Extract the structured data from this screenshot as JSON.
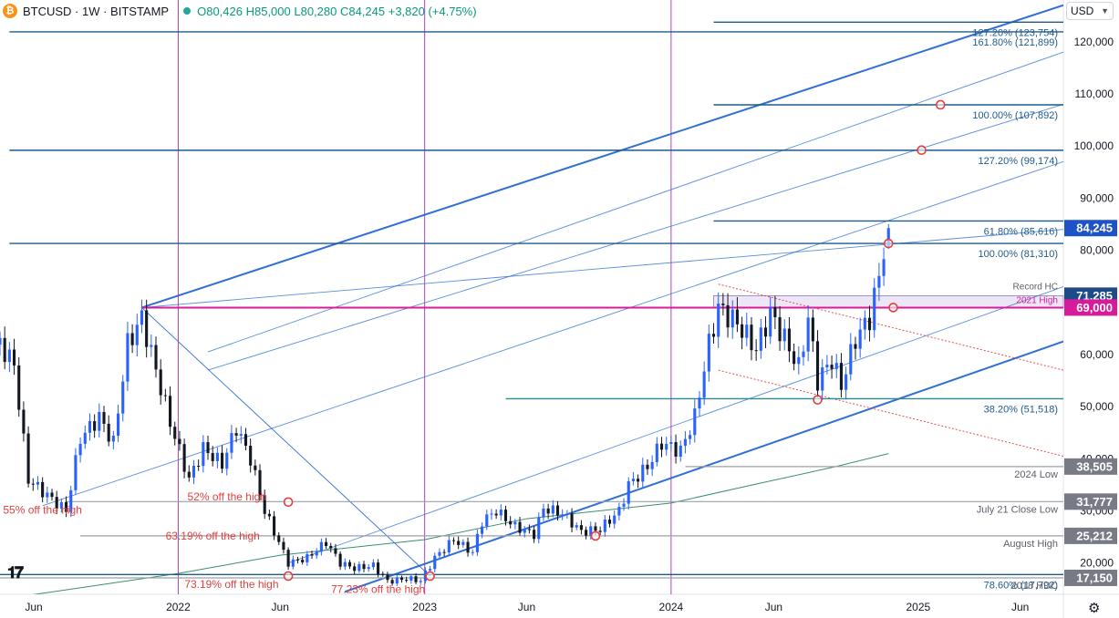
{
  "header": {
    "symbol": "BTCUSD · 1W · BITSTAMP",
    "coin_glyph": "₿",
    "ohlc": "O80,426  H85,000  L80,280  C84,245  +3,820 (+4.75%)"
  },
  "currency_button": "USD",
  "colors": {
    "up": "#2962ff",
    "down": "#131722",
    "fib_line": "#1e5a8c",
    "channel": "#2f6fd6",
    "magenta": "#d81b9a",
    "annotation_red": "#e04040",
    "price_tag": "#1e4a8a",
    "ma_green": "#3a8f6b",
    "teal": "#2a8a8a",
    "gray_level": "#9aa0a6"
  },
  "chart_data": {
    "type": "candlestick",
    "symbol": "BTCUSD",
    "timeframe": "1W",
    "exchange": "BITSTAMP",
    "ylim": [
      14000,
      128000
    ],
    "y_scale": "linear",
    "y_ticks": [
      20000,
      30000,
      40000,
      50000,
      60000,
      70000,
      80000,
      90000,
      100000,
      110000,
      120000
    ],
    "y_tick_labels": [
      "20,000",
      "30,000",
      "40,000",
      "50,000",
      "60,000",
      "70,000",
      "80,000",
      "90,000",
      "100,000",
      "110,000",
      "120,000"
    ],
    "x_range": [
      "2021-04-12",
      "2025-08-04"
    ],
    "x_ticks": [
      {
        "date": "2021-06-01",
        "label": "Jun"
      },
      {
        "date": "2022-01-01",
        "label": "2022"
      },
      {
        "date": "2022-06-01",
        "label": "Jun"
      },
      {
        "date": "2023-01-01",
        "label": "2023"
      },
      {
        "date": "2023-06-01",
        "label": "Jun"
      },
      {
        "date": "2024-01-01",
        "label": "2024"
      },
      {
        "date": "2024-06-01",
        "label": "Jun"
      },
      {
        "date": "2025-01-01",
        "label": "2025"
      },
      {
        "date": "2025-06-01",
        "label": "Jun"
      }
    ],
    "vertical_lines": [
      "2022-01-01",
      "2023-01-01",
      "2024-01-01"
    ],
    "price_path": [
      [
        "2021-04-12",
        62000
      ],
      [
        "2021-05-03",
        58000
      ],
      [
        "2021-05-24",
        36000
      ],
      [
        "2021-06-21",
        33000
      ],
      [
        "2021-07-19",
        30000
      ],
      [
        "2021-08-09",
        44000
      ],
      [
        "2021-09-06",
        48000
      ],
      [
        "2021-09-27",
        43000
      ],
      [
        "2021-10-18",
        62000
      ],
      [
        "2021-11-08",
        67000
      ],
      [
        "2021-11-29",
        57000
      ],
      [
        "2021-12-20",
        47000
      ],
      [
        "2022-01-17",
        36000
      ],
      [
        "2022-02-07",
        42000
      ],
      [
        "2022-03-07",
        39000
      ],
      [
        "2022-03-28",
        46000
      ],
      [
        "2022-04-18",
        40000
      ],
      [
        "2022-05-09",
        30000
      ],
      [
        "2022-06-13",
        20000
      ],
      [
        "2022-07-11",
        21000
      ],
      [
        "2022-08-08",
        24000
      ],
      [
        "2022-08-29",
        20000
      ],
      [
        "2022-09-19",
        19000
      ],
      [
        "2022-10-17",
        19500
      ],
      [
        "2022-11-07",
        16500
      ],
      [
        "2022-12-05",
        17000
      ],
      [
        "2022-12-26",
        16600
      ],
      [
        "2023-01-16",
        21000
      ],
      [
        "2023-02-13",
        24500
      ],
      [
        "2023-03-13",
        22000
      ],
      [
        "2023-03-27",
        28000
      ],
      [
        "2023-04-17",
        30000
      ],
      [
        "2023-05-15",
        27000
      ],
      [
        "2023-06-12",
        25500
      ],
      [
        "2023-06-26",
        30500
      ],
      [
        "2023-07-24",
        29500
      ],
      [
        "2023-08-21",
        26000
      ],
      [
        "2023-09-18",
        26500
      ],
      [
        "2023-10-16",
        30000
      ],
      [
        "2023-10-30",
        35000
      ],
      [
        "2023-11-27",
        38500
      ],
      [
        "2023-12-18",
        43000
      ],
      [
        "2024-01-15",
        41500
      ],
      [
        "2024-02-05",
        48000
      ],
      [
        "2024-02-26",
        62000
      ],
      [
        "2024-03-11",
        69000
      ],
      [
        "2024-04-08",
        66000
      ],
      [
        "2024-05-06",
        61000
      ],
      [
        "2024-05-27",
        68000
      ],
      [
        "2024-06-17",
        63000
      ],
      [
        "2024-07-08",
        57500
      ],
      [
        "2024-07-22",
        67000
      ],
      [
        "2024-08-05",
        55000
      ],
      [
        "2024-08-26",
        59000
      ],
      [
        "2024-09-09",
        54000
      ],
      [
        "2024-09-30",
        63000
      ],
      [
        "2024-10-21",
        67000
      ],
      [
        "2024-11-04",
        75000
      ],
      [
        "2024-11-11",
        80426
      ],
      [
        "2024-11-18",
        84245
      ]
    ],
    "last_candle": {
      "open": 80426,
      "high": 85000,
      "low": 80280,
      "close": 84245,
      "change": "+3,820 (+4.75%)"
    },
    "levels": [
      {
        "price": 123754,
        "label": "127.20% (123,754)",
        "x_start": "2024-03-04",
        "style": "fib"
      },
      {
        "price": 121899,
        "label": "161.80% (121,899)",
        "x_start": "2021-04-26",
        "style": "fib"
      },
      {
        "price": 107892,
        "label": "100.00% (107,892)",
        "x_start": "2024-03-04",
        "style": "fib"
      },
      {
        "price": 99174,
        "label": "127.20% (99,174)",
        "x_start": "2021-04-26",
        "style": "fib"
      },
      {
        "price": 85616,
        "label": "61.80% (85,616)",
        "x_start": "2024-03-04",
        "style": "fib"
      },
      {
        "price": 81310,
        "label": "100.00% (81,310)",
        "x_start": "2021-04-26",
        "style": "fib"
      },
      {
        "price": 51518,
        "label": "38.20% (51,518)",
        "x_start": "2023-05-01",
        "style": "teal"
      },
      {
        "price": 38505,
        "label": "2024 Low",
        "x_start": "2024-01-22",
        "style": "gray"
      },
      {
        "price": 31777,
        "label": "July 21 Close Low",
        "x_start": "2021-07-19",
        "style": "gray"
      },
      {
        "price": 25212,
        "label": "August High",
        "x_start": "2021-08-09",
        "style": "gray"
      },
      {
        "price": 17792,
        "label": "78.60% (17,792)",
        "x_start": "2021-04-12",
        "style": "fib"
      },
      {
        "price": 17150,
        "label": "2018 HDC",
        "x_start": "2021-04-12",
        "style": "gray"
      }
    ],
    "zone": {
      "low": 69000,
      "high": 71285,
      "x_start": "2024-03-04",
      "labels": [
        "Record HC",
        "2021 High"
      ]
    },
    "magenta_level": {
      "price": 69000,
      "x_start": "2021-11-08"
    },
    "price_tags": [
      {
        "price": 84245,
        "label": "84,245",
        "kind": "current"
      },
      {
        "price": 71285,
        "label": "71,285",
        "kind": "level"
      },
      {
        "price": 69000,
        "label": "69,000",
        "kind": "magenta"
      },
      {
        "price": 38505,
        "label": "38,505",
        "kind": "level"
      },
      {
        "price": 31777,
        "label": "31,777",
        "kind": "level"
      },
      {
        "price": 25212,
        "label": "25,212",
        "kind": "level"
      },
      {
        "price": 17150,
        "label": "17,150",
        "kind": "level"
      }
    ],
    "annotations": [
      {
        "text": "55% off the high",
        "date": "2021-06-14",
        "price": 29500
      },
      {
        "text": "52% off the high",
        "date": "2022-03-14",
        "price": 32000
      },
      {
        "text": "63.19% off the high",
        "date": "2022-02-21",
        "price": 24500
      },
      {
        "text": "73.19% off the high",
        "date": "2022-03-21",
        "price": 15200
      },
      {
        "text": "77.23% off the high",
        "date": "2022-10-24",
        "price": 14300
      }
    ],
    "markers": [
      {
        "date": "2022-06-13",
        "price": 31700
      },
      {
        "date": "2022-06-13",
        "price": 17500
      },
      {
        "date": "2023-01-09",
        "price": 17500
      },
      {
        "date": "2023-09-11",
        "price": 25200
      },
      {
        "date": "2024-08-05",
        "price": 51300
      },
      {
        "date": "2024-11-18",
        "price": 81300
      },
      {
        "date": "2024-11-25",
        "price": 69000
      },
      {
        "date": "2025-01-06",
        "price": 99200
      },
      {
        "date": "2025-02-03",
        "price": 107900
      }
    ],
    "pitchfork": {
      "pivot": [
        "2021-11-08",
        69000
      ],
      "median": [
        [
          "2021-11-08",
          69000
        ],
        [
          "2025-08-04",
          127000
        ]
      ],
      "lower": [
        [
          "2022-09-05",
          14500
        ],
        [
          "2025-08-04",
          62500
        ]
      ],
      "middle_lines": [
        [
          [
            "2021-11-08",
            69000
          ],
          [
            "2025-08-04",
            84000
          ]
        ],
        [
          [
            "2021-06-14",
            31000
          ],
          [
            "2025-08-04",
            97000
          ]
        ],
        [
          [
            "2022-02-14",
            57000
          ],
          [
            "2025-08-04",
            108000
          ]
        ],
        [
          [
            "2022-02-14",
            60500
          ],
          [
            "2025-08-04",
            118000
          ]
        ],
        [
          [
            "2022-06-13",
            20000
          ],
          [
            "2025-08-04",
            73000
          ]
        ]
      ],
      "diagonal": [
        [
          "2021-11-08",
          69000
        ],
        [
          "2023-01-09",
          17500
        ]
      ]
    },
    "red_dotted_channel": [
      [
        [
          "2024-03-11",
          73500
        ],
        [
          "2025-08-04",
          57000
        ]
      ],
      [
        [
          "2024-03-11",
          57000
        ],
        [
          "2025-08-04",
          40500
        ]
      ]
    ],
    "moving_average": [
      [
        "2021-04-12",
        13000
      ],
      [
        "2022-01-01",
        18000
      ],
      [
        "2022-06-01",
        21500
      ],
      [
        "2023-01-01",
        24500
      ],
      [
        "2023-06-01",
        28500
      ],
      [
        "2024-01-01",
        31500
      ],
      [
        "2024-05-01",
        35000
      ],
      [
        "2024-09-01",
        38500
      ],
      [
        "2024-11-18",
        41000
      ]
    ]
  }
}
